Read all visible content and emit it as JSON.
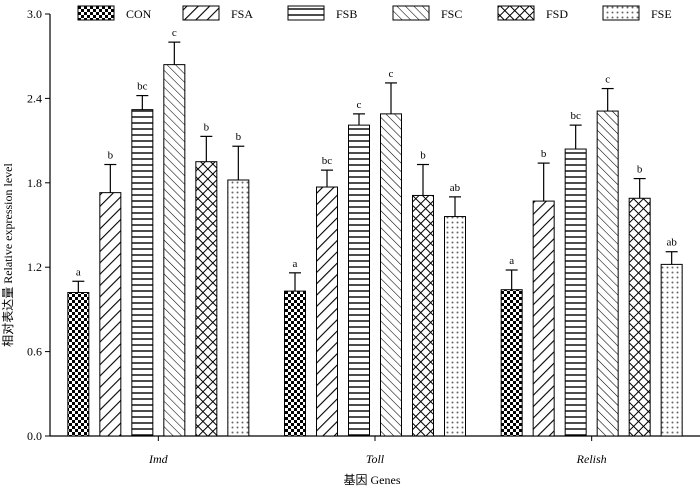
{
  "chart_data": {
    "type": "bar",
    "title": "",
    "xlabel": "基因 Genes",
    "ylabel": "相对表达量 Relative expression level",
    "ylim": [
      0,
      3.0
    ],
    "yticks": [
      "0.0",
      "0.6",
      "1.2",
      "1.8",
      "2.4",
      "3.0"
    ],
    "grid": false,
    "legend_position": "top",
    "categories": [
      "Imd",
      "Toll",
      "Relish"
    ],
    "series": [
      {
        "name": "CON",
        "pattern": "checker",
        "values": [
          1.02,
          1.03,
          1.04
        ],
        "errors": [
          0.08,
          0.13,
          0.14
        ],
        "labels": [
          "a",
          "a",
          "a"
        ]
      },
      {
        "name": "FSA",
        "pattern": "diag-up",
        "values": [
          1.73,
          1.77,
          1.67
        ],
        "errors": [
          0.2,
          0.12,
          0.27
        ],
        "labels": [
          "b",
          "bc",
          "b"
        ]
      },
      {
        "name": "FSB",
        "pattern": "horizontal",
        "values": [
          2.32,
          2.21,
          2.04
        ],
        "errors": [
          0.1,
          0.08,
          0.17
        ],
        "labels": [
          "bc",
          "c",
          "bc"
        ]
      },
      {
        "name": "FSC",
        "pattern": "diag-down",
        "values": [
          2.64,
          2.29,
          2.31
        ],
        "errors": [
          0.16,
          0.22,
          0.16
        ],
        "labels": [
          "c",
          "c",
          "c"
        ]
      },
      {
        "name": "FSD",
        "pattern": "crosshatch",
        "values": [
          1.95,
          1.71,
          1.69
        ],
        "errors": [
          0.18,
          0.22,
          0.14
        ],
        "labels": [
          "b",
          "b",
          "b"
        ]
      },
      {
        "name": "FSE",
        "pattern": "dots",
        "values": [
          1.82,
          1.56,
          1.22
        ],
        "errors": [
          0.24,
          0.14,
          0.09
        ],
        "labels": [
          "b",
          "ab",
          "ab"
        ]
      }
    ]
  }
}
